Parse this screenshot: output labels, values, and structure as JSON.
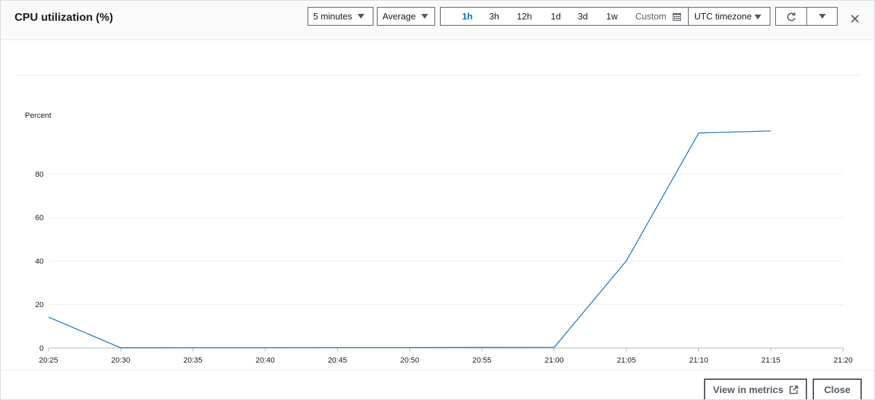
{
  "modal": {
    "title": "CPU utilization (%)",
    "period": "5 minutes",
    "statistic": "Average",
    "ranges": [
      "1h",
      "3h",
      "12h",
      "1d",
      "3d",
      "1w"
    ],
    "active_range": "1h",
    "custom_label": "Custom",
    "timezone": "UTC timezone",
    "refresh_icon": "refresh-icon",
    "close_icon": "close-icon"
  },
  "footer": {
    "view_in_metrics_label": "View in metrics",
    "close_label": "Close",
    "external_link_icon": "external-link-icon"
  },
  "chart_data": {
    "type": "line",
    "ylabel": "Percent",
    "x": [
      "20:25",
      "20:30",
      "20:35",
      "20:40",
      "20:45",
      "20:50",
      "20:55",
      "21:00",
      "21:05",
      "21:10",
      "21:15"
    ],
    "series": [
      {
        "values": [
          14.2,
          0.1,
          0.15,
          0.15,
          0.2,
          0.2,
          0.25,
          0.3,
          40.1,
          98.8,
          99.7
        ]
      }
    ],
    "x_ticks": [
      "20:25",
      "20:30",
      "20:35",
      "20:40",
      "20:45",
      "20:50",
      "20:55",
      "21:00",
      "21:05",
      "21:10",
      "21:15",
      "21:20"
    ],
    "y_ticks": [
      0,
      20,
      40,
      60,
      80
    ],
    "ylim": [
      0,
      100
    ],
    "grid": true,
    "line_color": "#1f77b4"
  }
}
